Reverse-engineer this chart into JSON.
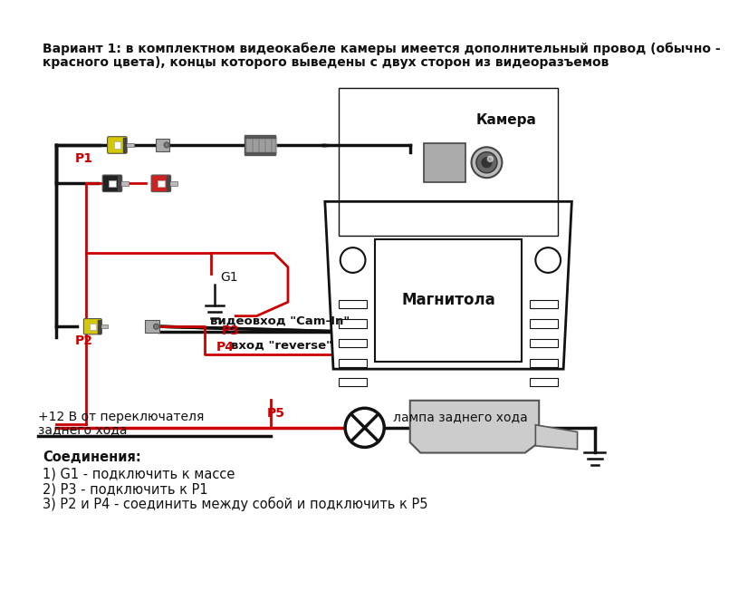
{
  "bg_color": "#ffffff",
  "title_line1": "Вариант 1: в комплектном видеокабеле камеры имеется дополнительный провод (обычно -",
  "title_line2": "красного цвета), концы которого выведены с двух сторон из видеоразъемов",
  "camera_label": "Камера",
  "magnitola_label": "Магнитола",
  "lampa_label": "лампа заднего хода",
  "plus12_line1": "+12 В от переключателя",
  "plus12_line2": "заднего хода",
  "videovhod_label": "видеовход \"Cam-In\"",
  "reverse_label": "вход \"reverse\"",
  "connections_header": "Соединения:",
  "connection1": "1) G1 - подключить к массе",
  "connection2": "2) Р3 - подключить к Р1",
  "connection3": "3) Р2 и Р4 - соединить между собой и подключить к Р5",
  "black_wire": "#111111",
  "red_wire": "#cc0000",
  "yellow_color": "#d4c800",
  "gray_color": "#888888",
  "light_gray": "#cccccc",
  "text_color": "#111111",
  "lw_black": 2.5,
  "lw_red": 2.0
}
